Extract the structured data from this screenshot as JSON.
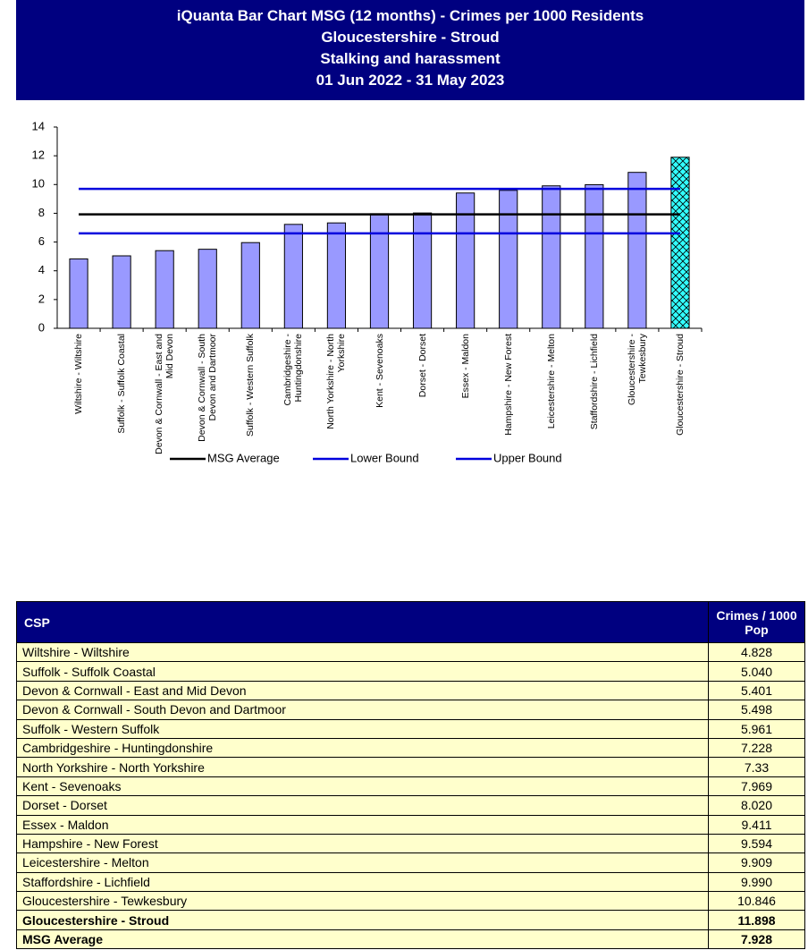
{
  "chart_data": {
    "type": "bar",
    "title_lines": [
      "iQuanta Bar Chart MSG (12 months) - Crimes per 1000 Residents",
      "Gloucestershire - Stroud",
      "Stalking and harassment",
      "01 Jun 2022 - 31 May 2023"
    ],
    "categories": [
      "Wiltshire - Wiltshire",
      "Suffolk - Suffolk Coastal",
      "Devon & Cornwall - East and Mid Devon",
      "Devon & Cornwall - South Devon and Dartmoor",
      "Suffolk - Western Suffolk",
      "Cambridgeshire - Huntingdonshire",
      "North Yorkshire - North Yorkshire",
      "Kent - Sevenoaks",
      "Dorset - Dorset",
      "Essex - Maldon",
      "Hampshire - New Forest",
      "Leicestershire - Melton",
      "Staffordshire - Lichfield",
      "Gloucestershire - Tewkesbury",
      "Gloucestershire - Stroud"
    ],
    "values": [
      4.828,
      5.04,
      5.401,
      5.498,
      5.961,
      7.228,
      7.33,
      7.969,
      8.02,
      9.411,
      9.594,
      9.909,
      9.99,
      10.846,
      11.898
    ],
    "bar_colors": [
      "#9999ff",
      "#9999ff",
      "#9999ff",
      "#9999ff",
      "#9999ff",
      "#9999ff",
      "#9999ff",
      "#9999ff",
      "#9999ff",
      "#9999ff",
      "#9999ff",
      "#9999ff",
      "#9999ff",
      "#9999ff",
      "#33ffff"
    ],
    "hatched": [
      false,
      false,
      false,
      false,
      false,
      false,
      false,
      false,
      false,
      false,
      false,
      false,
      false,
      false,
      true
    ],
    "series": [
      {
        "name": "MSG Average",
        "color": "#000000",
        "values": [
          7.928,
          7.928,
          7.928,
          7.928,
          7.928,
          7.928,
          7.928,
          7.928,
          7.928,
          7.928,
          7.928,
          7.928,
          7.928,
          7.928,
          7.928
        ]
      },
      {
        "name": "Lower Bound",
        "color": "#0000dd",
        "values": [
          6.6,
          6.6,
          6.6,
          6.6,
          6.6,
          6.6,
          6.6,
          6.6,
          6.6,
          6.6,
          6.6,
          6.6,
          6.6,
          6.6,
          6.6
        ]
      },
      {
        "name": "Upper Bound",
        "color": "#0000dd",
        "values": [
          9.7,
          9.7,
          9.7,
          9.7,
          9.7,
          9.7,
          9.7,
          9.7,
          9.7,
          9.7,
          9.7,
          9.7,
          9.7,
          9.7,
          9.7
        ]
      }
    ],
    "ylim": [
      0,
      14
    ],
    "yticks": [
      0,
      2,
      4,
      6,
      8,
      10,
      12,
      14
    ],
    "grid": false,
    "legend": "bottom"
  },
  "table": {
    "header": [
      "CSP",
      "Crimes / 1000 Pop"
    ],
    "rows": [
      [
        "Wiltshire - Wiltshire",
        "4.828"
      ],
      [
        "Suffolk - Suffolk Coastal",
        "5.040"
      ],
      [
        "Devon & Cornwall - East and Mid Devon",
        "5.401"
      ],
      [
        "Devon & Cornwall - South Devon and Dartmoor",
        "5.498"
      ],
      [
        "Suffolk - Western Suffolk",
        "5.961"
      ],
      [
        "Cambridgeshire - Huntingdonshire",
        "7.228"
      ],
      [
        "North Yorkshire - North Yorkshire",
        "7.33"
      ],
      [
        "Kent - Sevenoaks",
        "7.969"
      ],
      [
        "Dorset - Dorset",
        "8.020"
      ],
      [
        "Essex - Maldon",
        "9.411"
      ],
      [
        "Hampshire - New Forest",
        "9.594"
      ],
      [
        "Leicestershire - Melton",
        "9.909"
      ],
      [
        "Staffordshire - Lichfield",
        "9.990"
      ],
      [
        "Gloucestershire - Tewkesbury",
        "10.846"
      ],
      [
        "Gloucestershire - Stroud",
        "11.898"
      ],
      [
        "MSG Average",
        "7.928"
      ]
    ],
    "bold_rows": [
      false,
      false,
      false,
      false,
      false,
      false,
      false,
      false,
      false,
      false,
      false,
      false,
      false,
      false,
      true,
      true
    ]
  }
}
